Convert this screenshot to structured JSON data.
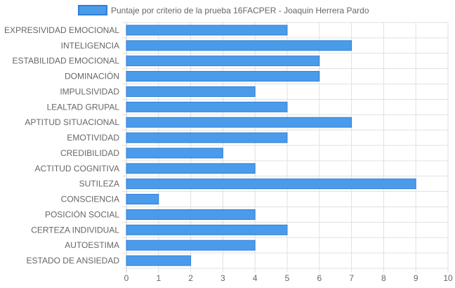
{
  "chart_data": {
    "type": "bar",
    "orientation": "horizontal",
    "categories": [
      "EXPRESIVIDAD EMOCIONAL",
      "INTELIGENCIA",
      "ESTABILIDAD EMOCIONAL",
      "DOMINACIÓN",
      "IMPULSIVIDAD",
      "LEALTAD GRUPAL",
      "APTITUD SITUACIONAL",
      "EMOTIVIDAD",
      "CREDIBILIDAD",
      "ACTITUD COGNITIVA",
      "SUTILEZA",
      "CONSCIENCIA",
      "POSICIÓN SOCIAL",
      "CERTEZA INDIVIDUAL",
      "AUTOESTIMA",
      "ESTADO DE ANSIEDAD"
    ],
    "series": [
      {
        "name": "Puntaje por criterio de la prueba 16FACPER - Joaquin Herrera Pardo",
        "values": [
          5,
          7,
          6,
          6,
          4,
          5,
          7,
          5,
          3,
          4,
          9,
          1,
          4,
          5,
          4,
          2
        ]
      }
    ],
    "xlim": [
      0,
      10
    ],
    "x_ticks": [
      "0",
      "1",
      "2",
      "3",
      "4",
      "5",
      "6",
      "7",
      "8",
      "9",
      "10"
    ],
    "grid": true,
    "legend_position": "top",
    "colors": {
      "bar_fill": "#4a9bea",
      "bar_border": "#2f7fd8",
      "grid": "#e0e0e0",
      "axis": "#c8c8c8"
    }
  }
}
